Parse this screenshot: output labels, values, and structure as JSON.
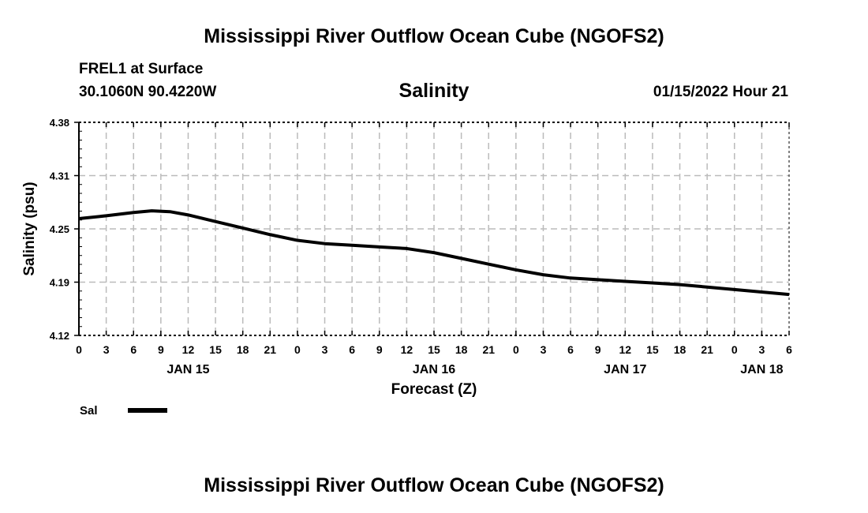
{
  "header": {
    "title": "Mississippi River Outflow Ocean Cube (NGOFS2)",
    "station": "FREL1 at Surface",
    "coords": "30.1060N  90.4220W",
    "datetime": "01/15/2022 Hour 21",
    "footer_title": "Mississippi River Outflow Ocean Cube (NGOFS2)"
  },
  "chart_data": {
    "type": "line",
    "title": "Salinity",
    "xlabel": "Forecast (Z)",
    "ylabel": "Salinity (psu)",
    "ylim": [
      4.12,
      4.38
    ],
    "yticks": [
      4.12,
      4.185,
      4.25,
      4.315,
      4.38
    ],
    "ytick_labels": [
      "4.12",
      "4.19",
      "4.25",
      "4.31",
      "4.38"
    ],
    "xlim": [
      0,
      78
    ],
    "xticks_hours": [
      0,
      3,
      6,
      9,
      12,
      15,
      18,
      21,
      24,
      27,
      30,
      33,
      36,
      39,
      42,
      45,
      48,
      51,
      54,
      57,
      60,
      63,
      66,
      69,
      72,
      75,
      78
    ],
    "xtick_labels": [
      "0",
      "3",
      "6",
      "9",
      "12",
      "15",
      "18",
      "21",
      "0",
      "3",
      "6",
      "9",
      "12",
      "15",
      "18",
      "21",
      "0",
      "3",
      "6",
      "9",
      "12",
      "15",
      "18",
      "21",
      "0",
      "3",
      "6"
    ],
    "date_labels": [
      {
        "hour": 12,
        "label": "JAN 15"
      },
      {
        "hour": 39,
        "label": "JAN 16"
      },
      {
        "hour": 60,
        "label": "JAN 17"
      },
      {
        "hour": 75,
        "label": "JAN 18"
      }
    ],
    "grid": true,
    "legend": {
      "position": "bottom-left",
      "label": "Sal"
    },
    "series": [
      {
        "name": "Sal",
        "color": "#000000",
        "x": [
          0,
          3,
          6,
          8,
          10,
          12,
          15,
          18,
          21,
          24,
          27,
          30,
          33,
          36,
          39,
          42,
          45,
          48,
          51,
          54,
          57,
          60,
          63,
          66,
          69,
          72,
          75,
          78
        ],
        "y": [
          4.2625,
          4.266,
          4.27,
          4.272,
          4.271,
          4.267,
          4.259,
          4.251,
          4.243,
          4.236,
          4.232,
          4.23,
          4.228,
          4.226,
          4.221,
          4.214,
          4.207,
          4.2,
          4.194,
          4.19,
          4.188,
          4.186,
          4.184,
          4.182,
          4.179,
          4.176,
          4.173,
          4.17
        ]
      }
    ]
  }
}
